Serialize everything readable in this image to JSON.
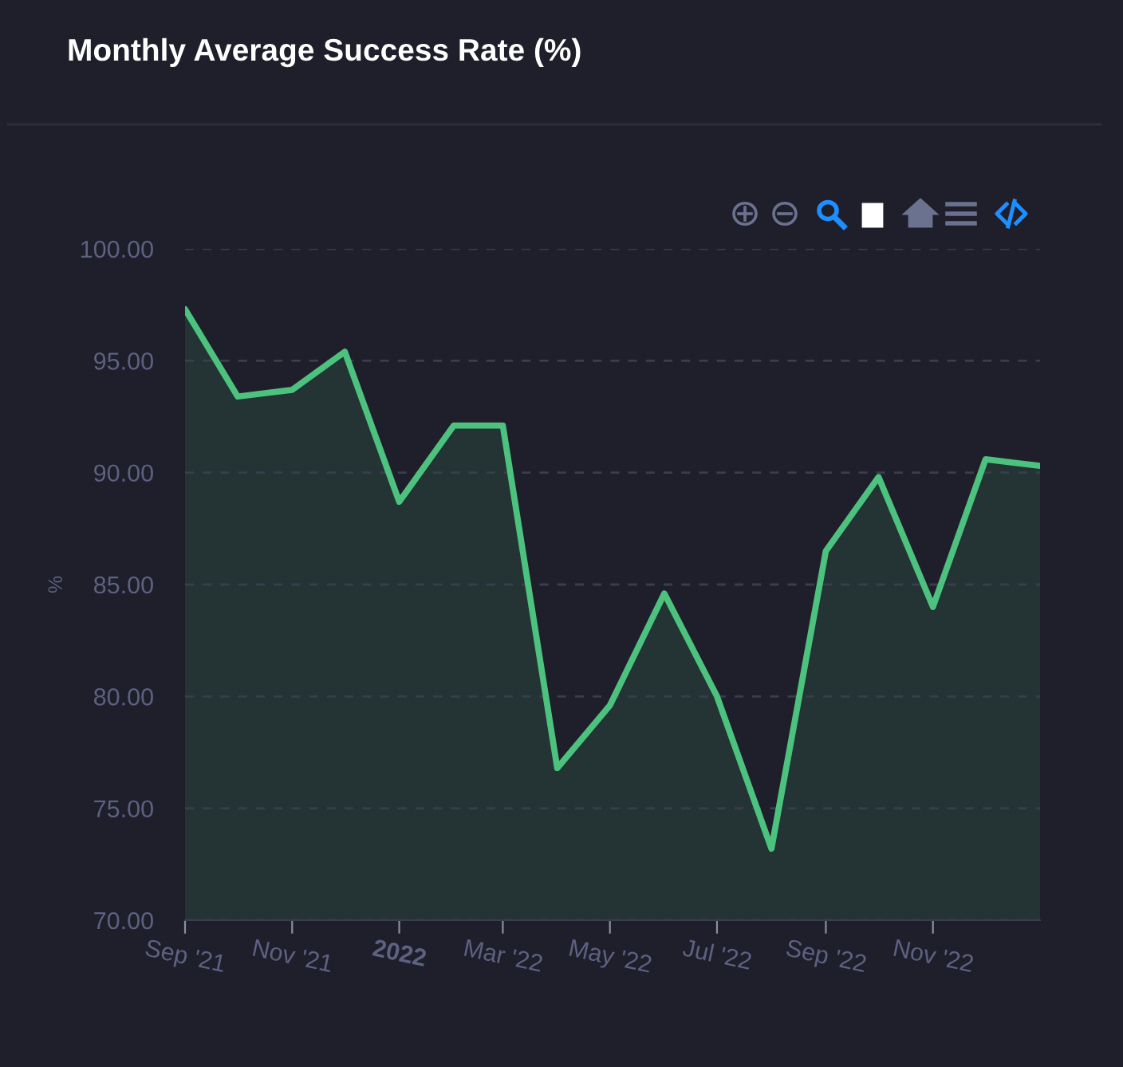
{
  "chart_data": {
    "type": "area",
    "title": "Monthly Average Success Rate (%)",
    "ylabel": "%",
    "x": [
      "2021-09",
      "2021-10",
      "2021-11",
      "2021-12",
      "2022-01",
      "2022-02",
      "2022-03",
      "2022-04",
      "2022-05",
      "2022-06",
      "2022-07",
      "2022-08",
      "2022-09",
      "2022-10",
      "2022-11",
      "2022-12",
      "2023-01"
    ],
    "series": [
      {
        "color": "#4cc27e",
        "values": [
          97.3,
          93.4,
          93.7,
          95.4,
          88.7,
          92.1,
          92.1,
          76.8,
          79.6,
          84.6,
          80.0,
          73.2,
          86.5,
          89.8,
          84.0,
          90.6,
          90.3
        ]
      }
    ],
    "xlim": [
      "2021-09",
      "2023-01"
    ],
    "xticks": [
      {
        "value": "2021-09",
        "label": "Sep '21"
      },
      {
        "value": "2021-11",
        "label": "Nov '21"
      },
      {
        "value": "2022-01",
        "label": "2022"
      },
      {
        "value": "2022-03",
        "label": "Mar '22"
      },
      {
        "value": "2022-05",
        "label": "May '22"
      },
      {
        "value": "2022-07",
        "label": "Jul '22"
      },
      {
        "value": "2022-09",
        "label": "Sep '22"
      },
      {
        "value": "2022-11",
        "label": "Nov '22"
      }
    ],
    "ylim": [
      70,
      100
    ],
    "yticks": [
      {
        "value": 70,
        "label": "70.00"
      },
      {
        "value": 75,
        "label": "75.00"
      },
      {
        "value": 80,
        "label": "80.00"
      },
      {
        "value": 85,
        "label": "85.00"
      },
      {
        "value": 90,
        "label": "90.00"
      },
      {
        "value": 95,
        "label": "95.00"
      },
      {
        "value": 100,
        "label": "100.00"
      }
    ],
    "grid": "y",
    "legend": false,
    "marker": "none",
    "line_style": "solid"
  }
}
